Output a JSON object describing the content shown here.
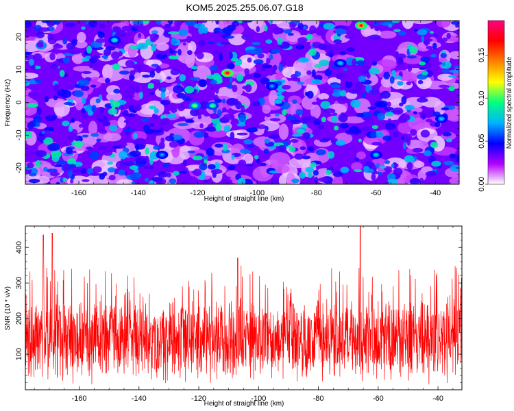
{
  "title": "KOM5.2025.255.06.07.G18",
  "chart_data": [
    {
      "type": "heatmap",
      "title": "KOM5.2025.255.06.07.G18",
      "xlabel": "Height of straight line (km)",
      "ylabel": "Frequency (Hz)",
      "xlim": [
        -178,
        -32
      ],
      "ylim": [
        -25,
        25
      ],
      "xticks": [
        -160,
        -140,
        -120,
        -100,
        -80,
        -60,
        -40
      ],
      "yticks": [
        -20,
        -10,
        0,
        10,
        20
      ],
      "colorbar": {
        "label": "Normalized spectral amplitude",
        "range": [
          0,
          0.19
        ],
        "ticks": [
          0.0,
          0.05,
          0.1,
          0.15
        ],
        "tick_labels": [
          "0.00",
          "0.05",
          "0.10",
          "0.15"
        ],
        "colormap": [
          "#ffffff",
          "#b400ff",
          "#0000ff",
          "#00b4ff",
          "#00ff80",
          "#ffff00",
          "#ff8000",
          "#ff0000",
          "#ff0080"
        ]
      },
      "hotspots": [
        {
          "x": -110,
          "y": 9,
          "value": 0.18
        },
        {
          "x": -65,
          "y": 23.5,
          "value": 0.17
        },
        {
          "x": -121,
          "y": -1,
          "value": 0.11
        },
        {
          "x": -115,
          "y": -1,
          "value": 0.1
        },
        {
          "x": -148,
          "y": 19,
          "value": 0.09
        },
        {
          "x": -72,
          "y": 12,
          "value": 0.08
        },
        {
          "x": -60,
          "y": -16,
          "value": 0.08
        },
        {
          "x": -38,
          "y": -5,
          "value": 0.08
        },
        {
          "x": -132,
          "y": -16,
          "value": 0.07
        },
        {
          "x": -95,
          "y": 5,
          "value": 0.07
        }
      ]
    },
    {
      "type": "line",
      "xlabel": "Height of straight line (km)",
      "ylabel": "SNR (10 * v/v)",
      "xlim": [
        -178,
        -32
      ],
      "ylim": [
        0,
        460
      ],
      "xticks": [
        -160,
        -140,
        -120,
        -100,
        -80,
        -60,
        -40
      ],
      "yticks": [
        100,
        200,
        300,
        400
      ],
      "color": "#ff0000",
      "series_summary": {
        "mean": 140,
        "typical_range": [
          20,
          280
        ],
        "peaks": [
          {
            "x": -66,
            "y": 460
          },
          {
            "x": -169,
            "y": 440
          },
          {
            "x": -172,
            "y": 435
          },
          {
            "x": -107,
            "y": 370
          }
        ]
      }
    }
  ]
}
